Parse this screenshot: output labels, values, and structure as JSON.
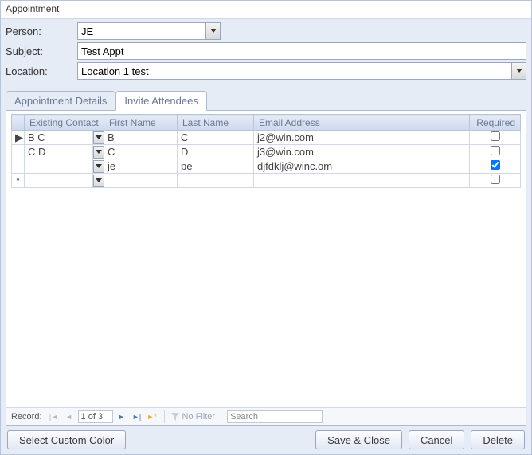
{
  "window": {
    "title": "Appointment"
  },
  "form": {
    "person_label": "Person:",
    "person_value": "JE",
    "subject_label": "Subject:",
    "subject_value": "Test Appt",
    "location_label": "Location:",
    "location_value": "Location 1 test"
  },
  "tabs": {
    "details": "Appointment Details",
    "invite": "Invite Attendees"
  },
  "grid": {
    "columns": {
      "existing": "Existing Contact",
      "first": "First Name",
      "last": "Last Name",
      "email": "Email Address",
      "required": "Required"
    },
    "col_widths": {
      "sel": 16,
      "existing": 86,
      "dd": 14,
      "first": 90,
      "last": 96,
      "email": 290,
      "required": 60
    },
    "rows": [
      {
        "marker": "▶",
        "existing": "B C",
        "first": "B",
        "last": "C",
        "email": "j2@win.com",
        "required": false
      },
      {
        "marker": "",
        "existing": "C D",
        "first": "C",
        "last": "D",
        "email": "j3@win.com",
        "required": false
      },
      {
        "marker": "",
        "existing": "",
        "first": "je",
        "last": "pe",
        "email": "djfdklj@winc.om",
        "required": true
      },
      {
        "marker": "*",
        "existing": "",
        "first": "",
        "last": "",
        "email": "",
        "required": false
      }
    ]
  },
  "nav": {
    "label": "Record:",
    "position": "1 of 3",
    "nofilter": "No Filter",
    "search_placeholder": "Search"
  },
  "buttons": {
    "custom_color": "Select Custom Color",
    "save_close_pre": "S",
    "save_close_ul": "a",
    "save_close_post": "ve & Close",
    "cancel_ul": "C",
    "cancel_post": "ancel",
    "delete_ul": "D",
    "delete_post": "elete"
  },
  "colors": {
    "panel_bg": "#e6ecf5",
    "border": "#b8c4d8",
    "header_text": "#6a7a94"
  }
}
